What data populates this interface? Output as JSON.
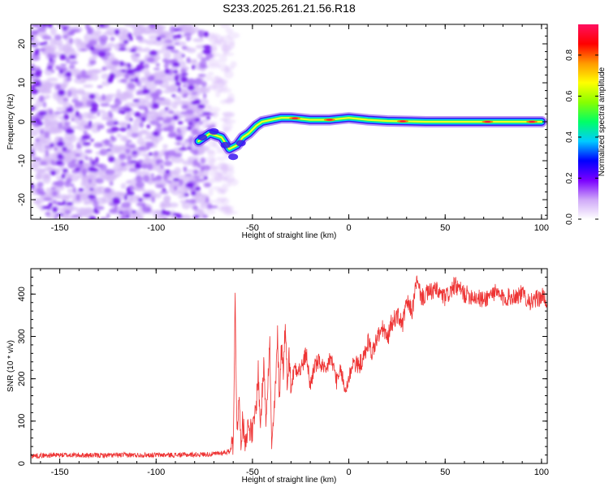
{
  "title": "S233.2025.261.21.56.R18",
  "chart_data": [
    {
      "type": "heatmap",
      "name": "spectrogram",
      "xlabel": "Height of straight line (km)",
      "ylabel": "Frequency (Hz)",
      "xlim": [
        -165,
        103
      ],
      "ylim": [
        -25,
        25
      ],
      "x_ticks": [
        -150,
        -100,
        -50,
        0,
        50,
        100
      ],
      "y_ticks": [
        -20,
        -10,
        0,
        10,
        20
      ],
      "grid": false,
      "noise_region_x": [
        -165,
        -70
      ],
      "signal_track": {
        "x": [
          -78,
          -72,
          -66,
          -62,
          -58,
          -55,
          -52,
          -48,
          -45,
          -40,
          -35,
          -30,
          -20,
          -10,
          0,
          10,
          20,
          40,
          60,
          80,
          100
        ],
        "freq": [
          -5,
          -3,
          -4,
          -7,
          -6,
          -4,
          -3,
          -1,
          0,
          0.5,
          1,
          1,
          0.5,
          0.5,
          1,
          0.5,
          0.2,
          0,
          0,
          0,
          0
        ],
        "peak_x": [
          -28,
          -10,
          28,
          72,
          95
        ]
      },
      "colorbar": {
        "label": "Normalized spectral amplitude",
        "range": [
          0,
          0.95
        ],
        "ticks": [
          0,
          0.2,
          0.4,
          0.6,
          0.8
        ],
        "tick_labels": [
          "0.0",
          "0.2",
          "0.4",
          "0.6",
          "0.8"
        ],
        "colors": [
          "#ffffff",
          "#cfa8f8",
          "#7a00ff",
          "#0000ff",
          "#00ccff",
          "#00ff66",
          "#88ff00",
          "#ffff00",
          "#ff9900",
          "#ff0000",
          "#ff1060"
        ]
      }
    },
    {
      "type": "line",
      "name": "snr",
      "xlabel": "Height of straight line (km)",
      "ylabel": "SNR (10 * v/v)",
      "xlim": [
        -165,
        103
      ],
      "ylim": [
        0,
        460
      ],
      "x_ticks": [
        -150,
        -100,
        -50,
        0,
        50,
        100
      ],
      "y_ticks": [
        0,
        100,
        200,
        300,
        400
      ],
      "grid": false,
      "color": "#ee3333",
      "series": [
        {
          "x": [
            -165,
            -150,
            -130,
            -110,
            -90,
            -70,
            -62,
            -60,
            -59,
            -58,
            -57,
            -56,
            -55,
            -54,
            -52,
            -50,
            -48,
            -47,
            -46,
            -45,
            -44,
            -43,
            -42,
            -41,
            -40,
            -38,
            -37,
            -36,
            -35,
            -34,
            -33,
            -32,
            -31,
            -30,
            -28,
            -25,
            -22,
            -20,
            -18,
            -15,
            -12,
            -10,
            -8,
            -6,
            -4,
            -2,
            0,
            2,
            5,
            8,
            10,
            12,
            15,
            18,
            20,
            22,
            25,
            28,
            30,
            33,
            35,
            38,
            40,
            45,
            50,
            55,
            60,
            65,
            70,
            75,
            80,
            85,
            90,
            95,
            100,
            103
          ],
          "y": [
            18,
            20,
            19,
            20,
            20,
            22,
            28,
            50,
            385,
            80,
            150,
            60,
            100,
            55,
            90,
            70,
            140,
            220,
            90,
            160,
            240,
            110,
            200,
            280,
            30,
            180,
            300,
            160,
            280,
            220,
            330,
            200,
            250,
            180,
            230,
            220,
            260,
            180,
            230,
            240,
            210,
            250,
            230,
            190,
            220,
            170,
            200,
            240,
            230,
            250,
            290,
            260,
            300,
            320,
            290,
            330,
            350,
            330,
            380,
            360,
            430,
            390,
            400,
            410,
            390,
            420,
            400,
            395,
            385,
            405,
            390,
            395,
            400,
            380,
            395,
            385
          ]
        }
      ]
    }
  ]
}
